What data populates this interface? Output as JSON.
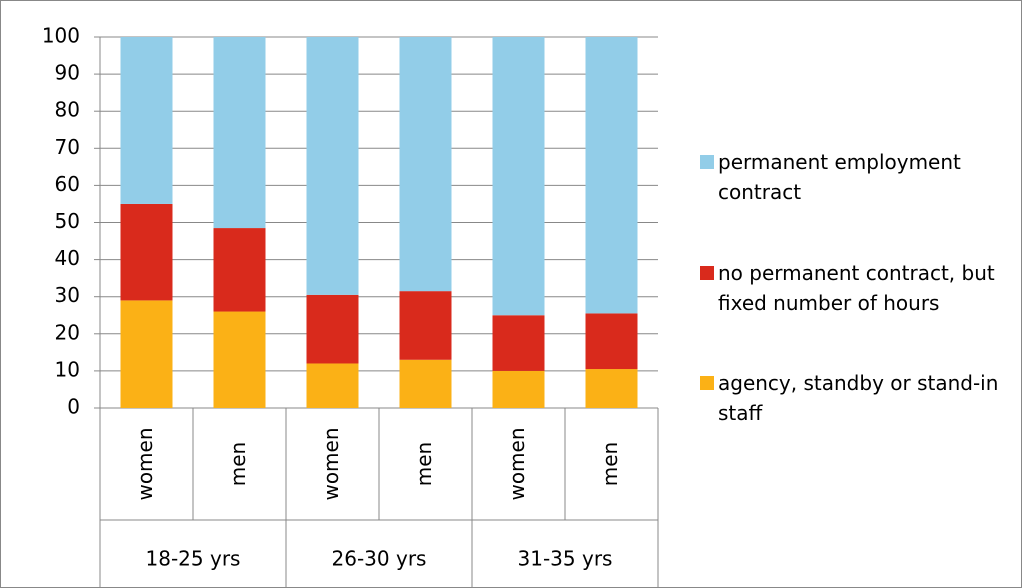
{
  "chart_data": {
    "type": "stacked_bar",
    "categories": [
      "women",
      "men",
      "women",
      "men",
      "women",
      "men"
    ],
    "groups": [
      "18-25 yrs",
      "26-30 yrs",
      "31-35 yrs"
    ],
    "series": [
      {
        "name": "agency, standby or stand-in staff",
        "color": "#fbb116",
        "values": [
          29,
          26,
          12,
          13,
          10,
          10.5
        ]
      },
      {
        "name": "no permanent contract, but fixed number of hours",
        "color": "#d92a1c",
        "values": [
          26,
          22.5,
          18.5,
          18.5,
          15,
          15
        ]
      },
      {
        "name": "permanent employment contract",
        "color": "#92cde8",
        "values": [
          45,
          51.5,
          69.5,
          68.5,
          75,
          74.5
        ]
      }
    ],
    "ylim": [
      0,
      100
    ],
    "yticks": [
      0,
      10,
      20,
      30,
      40,
      50,
      60,
      70,
      80,
      90,
      100
    ],
    "grid": true
  }
}
